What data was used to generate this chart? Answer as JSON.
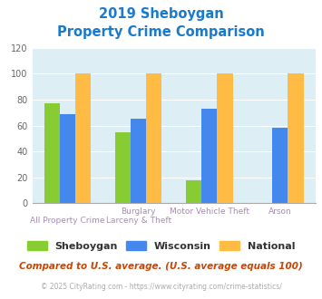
{
  "title_line1": "2019 Sheboygan",
  "title_line2": "Property Crime Comparison",
  "title_color": "#1a7acc",
  "sheboygan_vals": [
    77,
    55,
    18,
    0
  ],
  "wisconsin_vals": [
    69,
    65,
    73,
    58
  ],
  "national_vals": [
    100,
    100,
    100,
    100
  ],
  "colors": {
    "sheboygan": "#88cc33",
    "wisconsin": "#4488ee",
    "national": "#ffbb44"
  },
  "ylim": [
    0,
    120
  ],
  "yticks": [
    0,
    20,
    40,
    60,
    80,
    100,
    120
  ],
  "bg_color": "#ddeef5",
  "cat_top": [
    "",
    "Burglary",
    "Motor Vehicle Theft",
    "Arson"
  ],
  "cat_bot": [
    "All Property Crime",
    "Larceny & Theft",
    "",
    ""
  ],
  "label_color": "#aa88bb",
  "legend_labels": [
    "Sheboygan",
    "Wisconsin",
    "National"
  ],
  "legend_color": "#333333",
  "footnote": "Compared to U.S. average. (U.S. average equals 100)",
  "footnote_color": "#cc4400",
  "copyright_left": "© 2025 CityRating.com - ",
  "copyright_right": "https://www.cityrating.com/crime-statistics/",
  "copyright_color": "#aaaaaa",
  "copyright_link_color": "#4488cc"
}
